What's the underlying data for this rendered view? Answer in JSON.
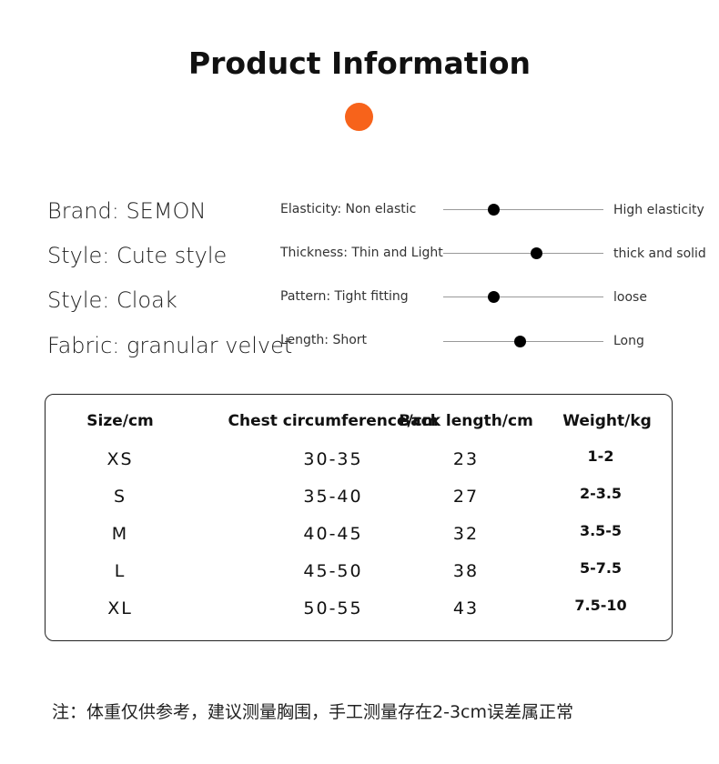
{
  "title": "Product Information",
  "accent_color": "#f7631b",
  "specs": [
    "Brand: SEMON",
    "Style: Cute style",
    "Style: Cloak",
    "Fabric: granular velvet"
  ],
  "attributes": [
    {
      "left": "Elasticity: Non elastic",
      "right": "High elasticity",
      "level": 0.31
    },
    {
      "left": "Thickness: Thin and Light",
      "right": "thick and solid",
      "level": 0.58
    },
    {
      "left": "Pattern: Tight fitting",
      "right": "loose",
      "level": 0.31
    },
    {
      "left": "Length: Short",
      "right": "Long",
      "level": 0.48
    }
  ],
  "size_table": {
    "headers": [
      "Size/cm",
      "Chest circumference/cm",
      "Back length/cm",
      "Weight/kg"
    ],
    "rows": [
      [
        "XS",
        "30-35",
        "23",
        "1-2"
      ],
      [
        "S",
        "35-40",
        "27",
        "2-3.5"
      ],
      [
        "M",
        "40-45",
        "32",
        "3.5-5"
      ],
      [
        "L",
        "45-50",
        "38",
        "5-7.5"
      ],
      [
        "XL",
        "50-55",
        "43",
        "7.5-10"
      ]
    ]
  },
  "note": "注：体重仅供参考，建议测量胸围，手工测量存在2-3cm误差属正常"
}
